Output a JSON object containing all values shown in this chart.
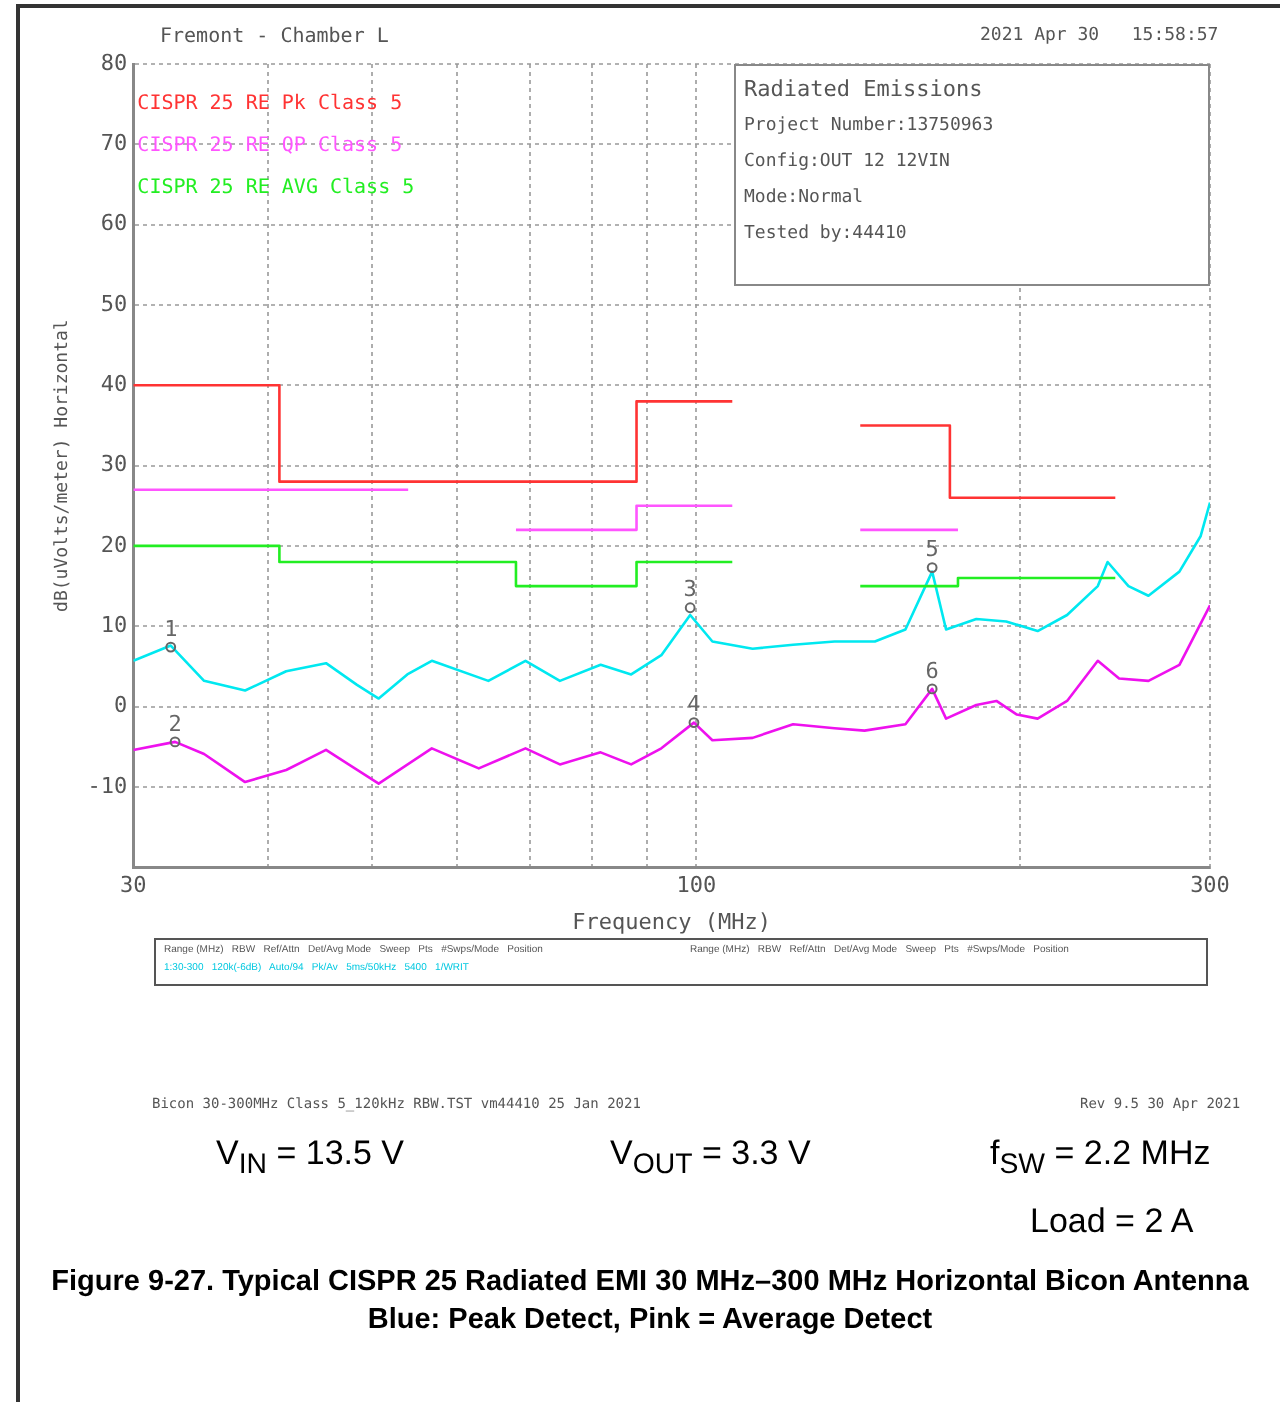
{
  "chart_data": {
    "type": "line",
    "title": "Figure 9-27. Typical CISPR 25 Radiated EMI 30 MHz–300 MHz Horizontal Bicon Antenna Blue: Peak Detect, Pink = Average Detect",
    "xlabel": "Frequency (MHz)",
    "ylabel": "dB(uVolts/meter) Horizontal",
    "log": "x",
    "xlim": [
      30,
      300
    ],
    "xticks": [
      30,
      {
        "value": 40,
        "label": null
      },
      {
        "value": 50,
        "label": null
      },
      {
        "value": 60,
        "label": null
      },
      {
        "value": 70,
        "label": null
      },
      {
        "value": 80,
        "label": null
      },
      {
        "value": 90,
        "label": null
      },
      100,
      {
        "value": 200,
        "label": null
      },
      300
    ],
    "ylim": [
      -20,
      80
    ],
    "yticks": [
      {
        "value": -20,
        "label": null
      },
      -10,
      0,
      10,
      20,
      30,
      40,
      50,
      60,
      70,
      80
    ],
    "grid": true,
    "legend": "top left",
    "marker": "none",
    "line_style": "solid",
    "series": [
      {
        "name": "CISPR 25 RE Pk Class 5",
        "color": "#ff3333",
        "x": [
          30,
          41,
          41,
          88,
          88,
          108,
          null,
          142,
          172,
          172,
          245
        ],
        "values": [
          40,
          40,
          28,
          28,
          38,
          38,
          null,
          35,
          35,
          26,
          26
        ]
      },
      {
        "name": "CISPR 25 RE QP Class 5",
        "color": "#ff55ff",
        "x": [
          30,
          54,
          null,
          68,
          88,
          88,
          108,
          null,
          142,
          175
        ],
        "values": [
          27,
          27,
          null,
          22,
          22,
          25,
          25,
          null,
          22,
          22
        ]
      },
      {
        "name": "CISPR 25 RE AVG Class 5",
        "color": "#22ee22",
        "x": [
          30,
          41,
          41,
          68,
          68,
          88,
          88,
          108,
          null,
          142,
          175,
          175,
          245
        ],
        "values": [
          20,
          20,
          18,
          18,
          15,
          15,
          18,
          18,
          null,
          15,
          15,
          16,
          16
        ]
      },
      {
        "color": "#00e8f0",
        "x": [
          30,
          32.5,
          34.9,
          38.1,
          41.6,
          45.3,
          48.4,
          50.7,
          53.9,
          56.8,
          64.1,
          69.4,
          74.7,
          81.5,
          87,
          92.8,
          98.7,
          103.5,
          112.8,
          123,
          134.4,
          146.5,
          156.4,
          165.6,
          170.6,
          182,
          194,
          207.5,
          221,
          236,
          241,
          252,
          263,
          281,
          294,
          300
        ],
        "values": [
          5.7,
          7.6,
          3.2,
          2,
          4.4,
          5.4,
          2.7,
          1,
          4,
          5.7,
          3.2,
          5.7,
          3.2,
          5.2,
          4,
          6.4,
          11.4,
          8.1,
          7.2,
          7.7,
          8.1,
          8.1,
          9.6,
          16.8,
          9.6,
          10.9,
          10.6,
          9.4,
          11.4,
          15,
          18,
          15,
          13.8,
          16.8,
          21.2,
          25.4
        ]
      },
      {
        "color": "#ee11ee",
        "x": [
          30,
          32.8,
          34.9,
          38.1,
          41.6,
          45.3,
          50.7,
          56.8,
          62.8,
          69.4,
          74.7,
          81.5,
          87,
          92.8,
          99.5,
          103.5,
          112.8,
          123,
          134.4,
          143.3,
          156.4,
          165.6,
          170.6,
          182,
          190,
          198.5,
          207.5,
          221,
          236,
          247,
          263,
          281,
          300
        ],
        "values": [
          -5.4,
          -4.4,
          -5.9,
          -9.4,
          -7.9,
          -5.4,
          -9.6,
          -5.2,
          -7.7,
          -5.2,
          -7.2,
          -5.7,
          -7.2,
          -5.2,
          -2,
          -4.2,
          -3.9,
          -2.2,
          -2.7,
          -3,
          -2.2,
          2.2,
          -1.5,
          0.2,
          0.7,
          -1,
          -1.5,
          0.7,
          5.7,
          3.5,
          3.2,
          5.2,
          12.6
        ]
      }
    ],
    "annotations": [
      {
        "text": "1",
        "x": 32.5,
        "y": 7.4
      },
      {
        "text": "2",
        "x": 32.8,
        "y": -4.4
      },
      {
        "text": "3",
        "x": 98.7,
        "y": 12.3
      },
      {
        "text": "4",
        "x": 99.5,
        "y": -2
      },
      {
        "text": "5",
        "x": 165.6,
        "y": 17.3
      },
      {
        "text": "6",
        "x": 165.6,
        "y": 2.2
      },
      "Fremont - Chamber L",
      "2021 Apr 30   15:58:57",
      "Radiated Emissions",
      "Project Number:13750963",
      "Config:OUT 12 12VIN",
      "Mode:Normal",
      "Tested by:44410",
      "Range (MHz)   RBW   Ref/Attn   Det/Avg Mode   Sweep   Pts   #Swps/Mode   Position",
      "1:30-300   120k(-6dB)   Auto/94   Pk/Av   5ms/50kHz   5400   1/WRIT",
      "Range (MHz)   RBW   Ref/Attn   Det/Avg Mode   Sweep   Pts   #Swps/Mode   Position",
      "Bicon 30-300MHz Class 5_120kHz RBW.TST vm44410 25 Jan 2021",
      "Rev 9.5 30 Apr 2021",
      "V$_{IN}$ = 13.5 V",
      "V$_{OUT}$ = 3.3 V",
      "f$_{SW}$ = 2.2 MHz",
      "Load = 2 A"
    ]
  }
}
